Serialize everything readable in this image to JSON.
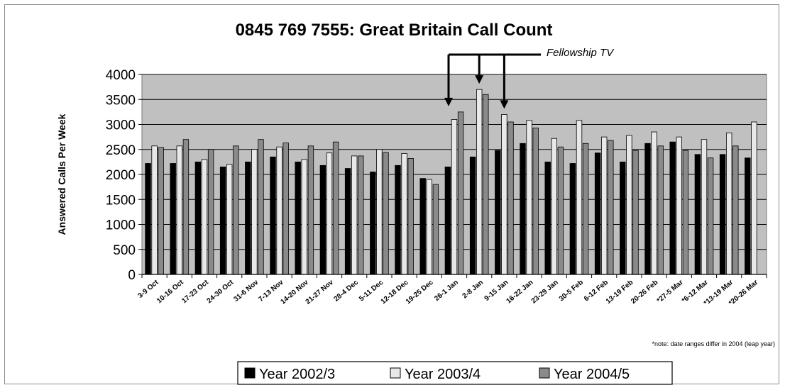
{
  "chart_data": {
    "type": "bar",
    "title": "0845 769 7555: Great Britain Call Count",
    "xlabel": "",
    "ylabel": "Answered Calls Per Week",
    "ylim": [
      0,
      4000
    ],
    "yticks": [
      0,
      500,
      1000,
      1500,
      2000,
      2500,
      3000,
      3500,
      4000
    ],
    "grid": true,
    "legend_position": "bottom",
    "categories": [
      "3-9 Oct",
      "10-16 Oct",
      "17-23 Oct",
      "24-30 Oct",
      "31-6 Nov",
      "7-13 Nov",
      "14-20 Nov",
      "21-27 Nov",
      "28-4 Dec",
      "5-11 Dec",
      "12-18 Dec",
      "19-25 Dec",
      "26-1 Jan",
      "2-8 Jan",
      "9-15 Jan",
      "16-22 Jan",
      "23-29 Jan",
      "30-5 Feb",
      "6-12 Feb",
      "13-19 Feb",
      "20-26 Feb",
      "*27-5 Mar",
      "*6-12 Mar",
      "*13-19 Mar",
      "*20-26 Mar"
    ],
    "series": [
      {
        "name": "Year 2002/3",
        "color": "#000000",
        "values": [
          2220,
          2220,
          2250,
          2150,
          2250,
          2350,
          2250,
          2180,
          2120,
          2050,
          2180,
          1920,
          2150,
          2350,
          2480,
          2620,
          2250,
          2220,
          2430,
          2250,
          2620,
          2650,
          2400,
          2400,
          2330
        ]
      },
      {
        "name": "Year 2003/4",
        "color": "#e8e8e8",
        "values": [
          2570,
          2570,
          2300,
          2200,
          2500,
          2550,
          2300,
          2430,
          2370,
          2500,
          2420,
          1900,
          3100,
          3700,
          3200,
          3080,
          2720,
          3080,
          2750,
          2780,
          2850,
          2750,
          2700,
          2830,
          3050
        ]
      },
      {
        "name": "Year 2004/5",
        "color": "#8a8a8a",
        "values": [
          2540,
          2700,
          2500,
          2570,
          2700,
          2630,
          2570,
          2650,
          2370,
          2440,
          2320,
          1800,
          3250,
          3600,
          3050,
          2930,
          2550,
          2620,
          2680,
          2480,
          2570,
          2480,
          2330,
          2570,
          null
        ]
      }
    ],
    "annotations": [
      {
        "text": "Fellowship TV",
        "points_to": [
          "26-1 Jan",
          "2-8 Jan",
          "9-15 Jan"
        ]
      }
    ],
    "note": "*note: date ranges differ in 2004 (leap year)"
  }
}
